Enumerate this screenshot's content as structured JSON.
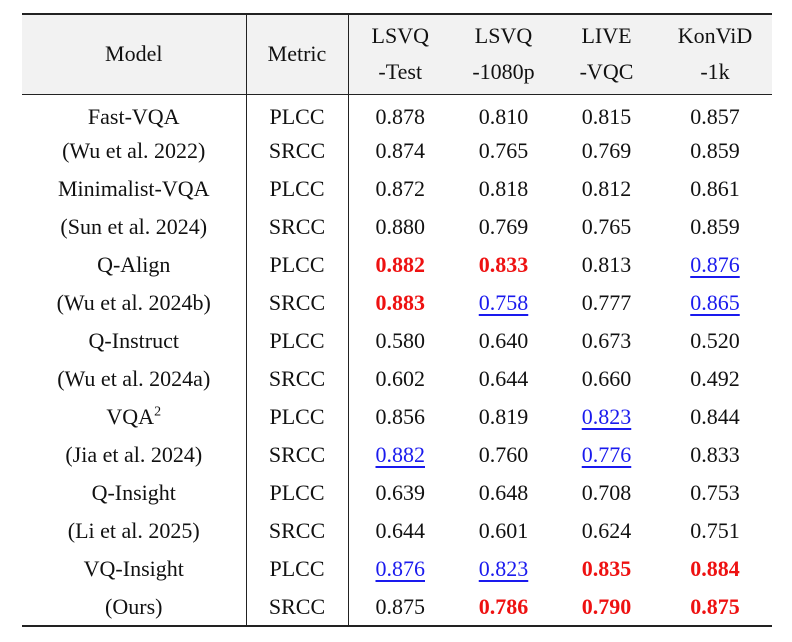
{
  "table": {
    "header": {
      "model": "Model",
      "metric": "Metric",
      "columns": [
        [
          "LSVQ",
          "-Test"
        ],
        [
          "LSVQ",
          "-1080p"
        ],
        [
          "LIVE",
          "-VQC"
        ],
        [
          "KonViD",
          "-1k"
        ]
      ]
    },
    "rows": [
      {
        "model": "Fast-VQA",
        "metric": "PLCC",
        "scores": [
          "0.878",
          "0.810",
          "0.815",
          "0.857"
        ]
      },
      {
        "model": "(Wu et al. 2022)",
        "metric": "SRCC",
        "scores": [
          "0.874",
          "0.765",
          "0.769",
          "0.859"
        ]
      },
      {
        "model": "Minimalist-VQA",
        "metric": "PLCC",
        "scores": [
          "0.872",
          "0.818",
          "0.812",
          "0.861"
        ]
      },
      {
        "model": "(Sun et al. 2024)",
        "metric": "SRCC",
        "scores": [
          "0.880",
          "0.769",
          "0.765",
          "0.859"
        ]
      },
      {
        "model": "Q-Align",
        "metric": "PLCC",
        "scores": [
          "0.882",
          "0.833",
          "0.813",
          "0.876"
        ]
      },
      {
        "model": "(Wu et al. 2024b)",
        "metric": "SRCC",
        "scores": [
          "0.883",
          "0.758",
          "0.777",
          "0.865"
        ]
      },
      {
        "model": "Q-Instruct",
        "metric": "PLCC",
        "scores": [
          "0.580",
          "0.640",
          "0.673",
          "0.520"
        ]
      },
      {
        "model": "(Wu et al. 2024a)",
        "metric": "SRCC",
        "scores": [
          "0.602",
          "0.644",
          "0.660",
          "0.492"
        ]
      },
      {
        "model": "VQA",
        "model_sup": "2",
        "metric": "PLCC",
        "scores": [
          "0.856",
          "0.819",
          "0.823",
          "0.844"
        ]
      },
      {
        "model": "(Jia et al. 2024)",
        "metric": "SRCC",
        "scores": [
          "0.882",
          "0.760",
          "0.776",
          "0.833"
        ]
      },
      {
        "model": "Q-Insight",
        "metric": "PLCC",
        "scores": [
          "0.639",
          "0.648",
          "0.708",
          "0.753"
        ]
      },
      {
        "model": "(Li et al. 2025)",
        "metric": "SRCC",
        "scores": [
          "0.644",
          "0.601",
          "0.624",
          "0.751"
        ]
      },
      {
        "model": "VQ-Insight",
        "metric": "PLCC",
        "scores": [
          "0.876",
          "0.823",
          "0.835",
          "0.884"
        ]
      },
      {
        "model": "(Ours)",
        "metric": "SRCC",
        "scores": [
          "0.875",
          "0.786",
          "0.790",
          "0.875"
        ]
      }
    ]
  }
}
